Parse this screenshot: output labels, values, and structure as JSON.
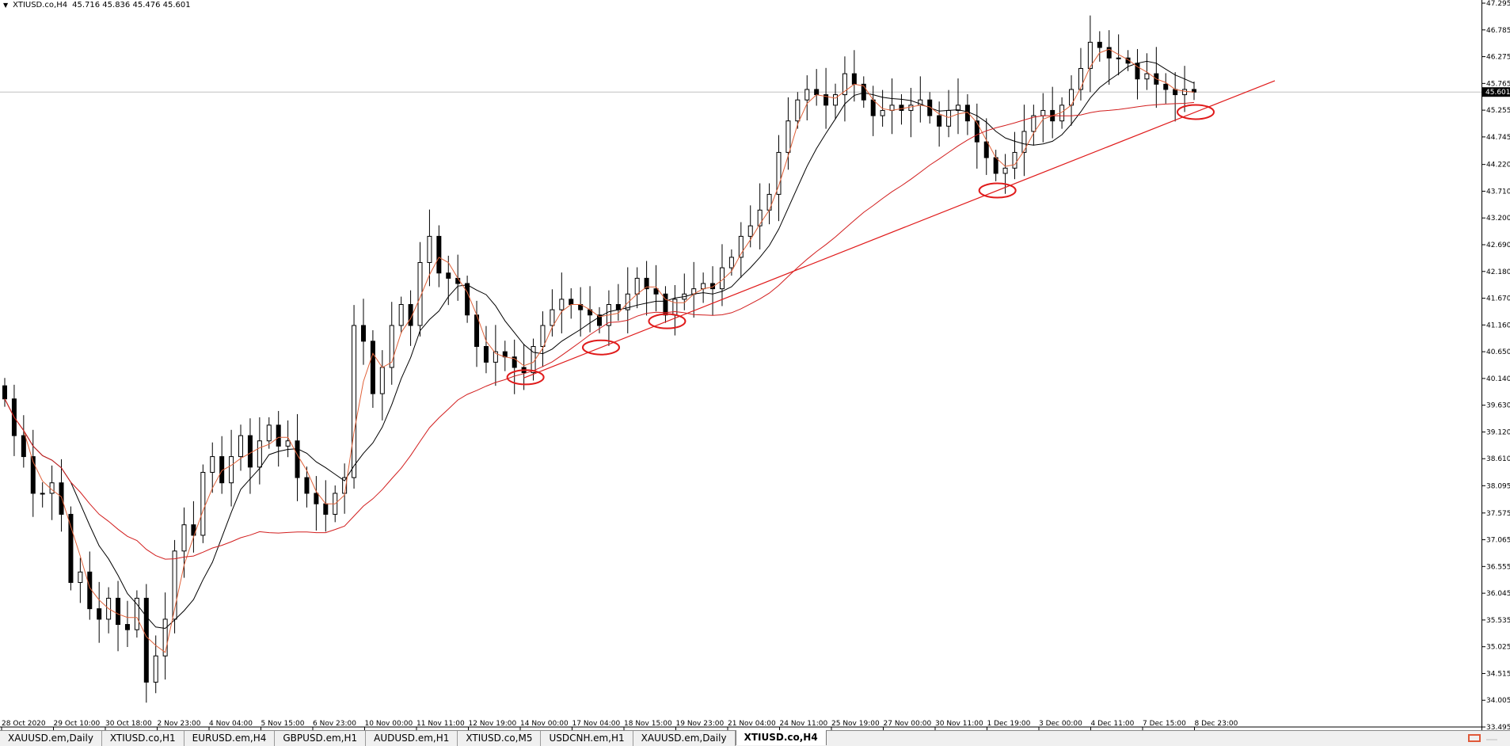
{
  "header": {
    "symbol_timeframe": "XTIUSD.co,H4",
    "ohlc": "45.716 45.836 45.476 45.601"
  },
  "current_price": "45.601",
  "price_axis": {
    "min": 33.495,
    "max": 47.295,
    "ticks": [
      "47.295",
      "46.785",
      "46.275",
      "45.765",
      "45.255",
      "44.745",
      "44.220",
      "43.710",
      "43.200",
      "42.690",
      "42.180",
      "41.670",
      "41.160",
      "40.650",
      "40.140",
      "39.630",
      "39.120",
      "38.610",
      "38.095",
      "37.575",
      "37.065",
      "36.555",
      "36.045",
      "35.535",
      "35.025",
      "34.515",
      "34.005",
      "33.495"
    ]
  },
  "time_axis": {
    "labels": [
      "28 Oct 2020",
      "29 Oct 10:00",
      "30 Oct 18:00",
      "2 Nov 23:00",
      "4 Nov 04:00",
      "5 Nov 15:00",
      "6 Nov 23:00",
      "10 Nov 00:00",
      "11 Nov 11:00",
      "12 Nov 19:00",
      "14 Nov 00:00",
      "17 Nov 04:00",
      "18 Nov 15:00",
      "19 Nov 23:00",
      "21 Nov 04:00",
      "24 Nov 11:00",
      "25 Nov 19:00",
      "27 Nov 00:00",
      "30 Nov 11:00",
      "1 Dec 19:00",
      "3 Dec 00:00",
      "4 Dec 11:00",
      "7 Dec 15:00",
      "8 Dec 23:00"
    ]
  },
  "chart_data": {
    "type": "candlestick",
    "symbol": "XTIUSD.co",
    "timeframe": "H4",
    "ylim": [
      33.495,
      47.295
    ],
    "closes": [
      39.75,
      39.05,
      38.65,
      37.95,
      37.95,
      38.15,
      37.55,
      36.25,
      36.45,
      35.75,
      35.55,
      35.95,
      35.45,
      35.35,
      35.95,
      34.35,
      34.85,
      35.55,
      36.85,
      37.35,
      37.15,
      38.35,
      38.65,
      38.15,
      38.65,
      39.05,
      38.45,
      38.95,
      39.25,
      38.85,
      38.95,
      38.25,
      37.95,
      37.75,
      37.55,
      37.95,
      38.25,
      41.15,
      40.85,
      39.85,
      40.35,
      41.15,
      41.55,
      41.15,
      42.35,
      42.85,
      42.15,
      42.05,
      41.95,
      41.35,
      40.75,
      40.45,
      40.65,
      40.55,
      40.35,
      40.25,
      40.75,
      41.15,
      41.45,
      41.65,
      41.55,
      41.45,
      41.35,
      41.15,
      41.55,
      41.45,
      41.75,
      42.05,
      41.85,
      41.75,
      41.35,
      41.65,
      41.75,
      41.85,
      41.95,
      41.85,
      42.25,
      42.45,
      42.85,
      43.05,
      43.35,
      43.65,
      44.45,
      45.05,
      45.45,
      45.65,
      45.55,
      45.35,
      45.55,
      45.95,
      45.75,
      45.45,
      45.15,
      45.25,
      45.35,
      45.25,
      45.35,
      45.45,
      45.15,
      44.95,
      45.25,
      45.35,
      45.05,
      44.65,
      44.35,
      44.05,
      44.15,
      44.45,
      44.85,
      45.15,
      45.25,
      45.05,
      45.35,
      45.65,
      46.05,
      46.55,
      46.45,
      46.25,
      46.25,
      46.15,
      45.85,
      45.95,
      45.75,
      45.65,
      45.55,
      45.65,
      45.6
    ],
    "moving_averages": [
      {
        "color": "#000000",
        "period": "fast"
      },
      {
        "color": "#e0623a",
        "period": "faster"
      },
      {
        "color": "#d21e1e",
        "period": "slow"
      }
    ],
    "trendline_color": "#e01b1b",
    "highlight_circles": 5,
    "grid": false
  },
  "tabs": [
    {
      "label": "XAUUSD.em,Daily",
      "active": false
    },
    {
      "label": "XTIUSD.co,H1",
      "active": false
    },
    {
      "label": "EURUSD.em,H4",
      "active": false
    },
    {
      "label": "GBPUSD.em,H1",
      "active": false
    },
    {
      "label": "AUDUSD.em,H1",
      "active": false
    },
    {
      "label": "XTIUSD.co,M5",
      "active": false
    },
    {
      "label": "USDCNH.em,H1",
      "active": false
    },
    {
      "label": "XAUUSD.em,Daily",
      "active": false
    },
    {
      "label": "XTIUSD.co,H4",
      "active": true
    }
  ],
  "colors": {
    "accent_red": "#e01b1b",
    "axis_black": "#000000"
  }
}
